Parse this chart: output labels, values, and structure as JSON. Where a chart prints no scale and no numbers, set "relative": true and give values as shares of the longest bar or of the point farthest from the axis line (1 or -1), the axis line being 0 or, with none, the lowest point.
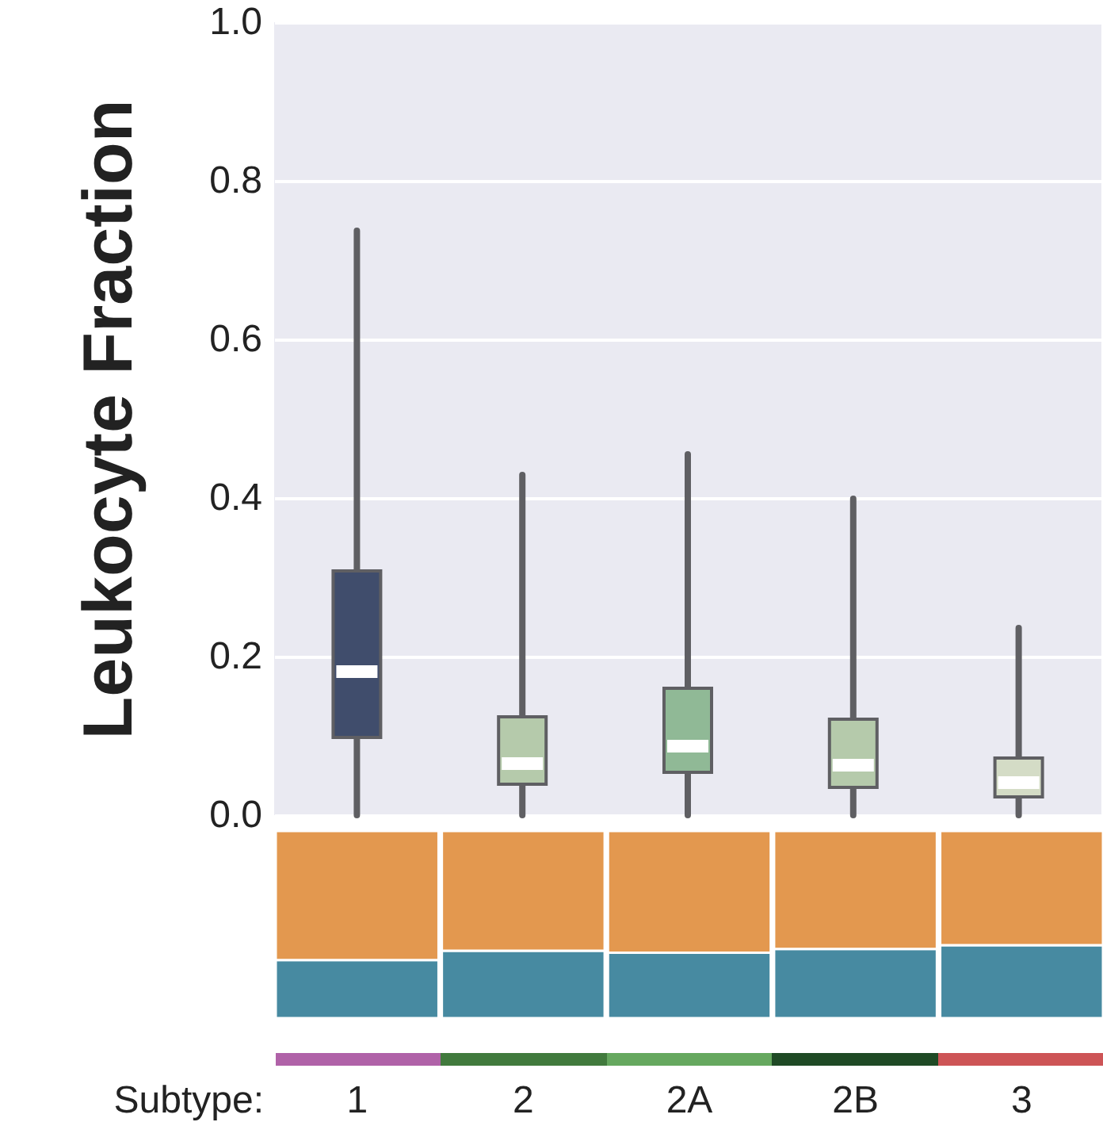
{
  "chart_data": [
    {
      "type": "box",
      "ylabel": "Leukocyte Fraction",
      "categories": [
        null,
        null,
        null,
        null,
        null
      ],
      "boxes": [
        {
          "low": 0,
          "q1": 0.098,
          "median": 0.181,
          "q3": 0.308,
          "high": 0.737
        },
        {
          "low": 0,
          "q1": 0.039,
          "median": 0.065,
          "q3": 0.124,
          "high": 0.429
        },
        {
          "low": 0,
          "q1": 0.054,
          "median": 0.087,
          "q3": 0.16,
          "high": 0.455
        },
        {
          "low": 0,
          "q1": 0.035,
          "median": 0.063,
          "q3": 0.121,
          "high": 0.399
        },
        {
          "low": 0,
          "q1": 0.023,
          "median": 0.041,
          "q3": 0.072,
          "high": 0.236
        }
      ],
      "colors": [
        "#404d6c",
        "#b5caab",
        "#90b996",
        "#b5caab",
        "#d4dcc6"
      ],
      "ylim": [
        0,
        1
      ],
      "yticks": [
        {
          "value": 0,
          "label": "0.0"
        },
        {
          "value": 0.2,
          "label": "0.2"
        },
        {
          "value": 0.4,
          "label": "0.4"
        },
        {
          "value": 0.6,
          "label": "0.6"
        },
        {
          "value": 0.8,
          "label": "0.8"
        },
        {
          "value": 1,
          "label": "1.0"
        }
      ],
      "grid": "y",
      "tick_labels": "y"
    },
    {
      "type": "bar",
      "stacked": true,
      "relative": true,
      "xlabel": "Subtype:",
      "categories": [
        "1",
        "2",
        "2A",
        "2B",
        "3"
      ],
      "series": [
        {
          "color": "#478aa1",
          "values": [
            0.31,
            0.36,
            0.35,
            0.37,
            0.39
          ]
        },
        {
          "color": "#e3984f",
          "values": [
            0.69,
            0.64,
            0.65,
            0.63,
            0.61
          ]
        }
      ],
      "tick_labels": "x"
    }
  ]
}
